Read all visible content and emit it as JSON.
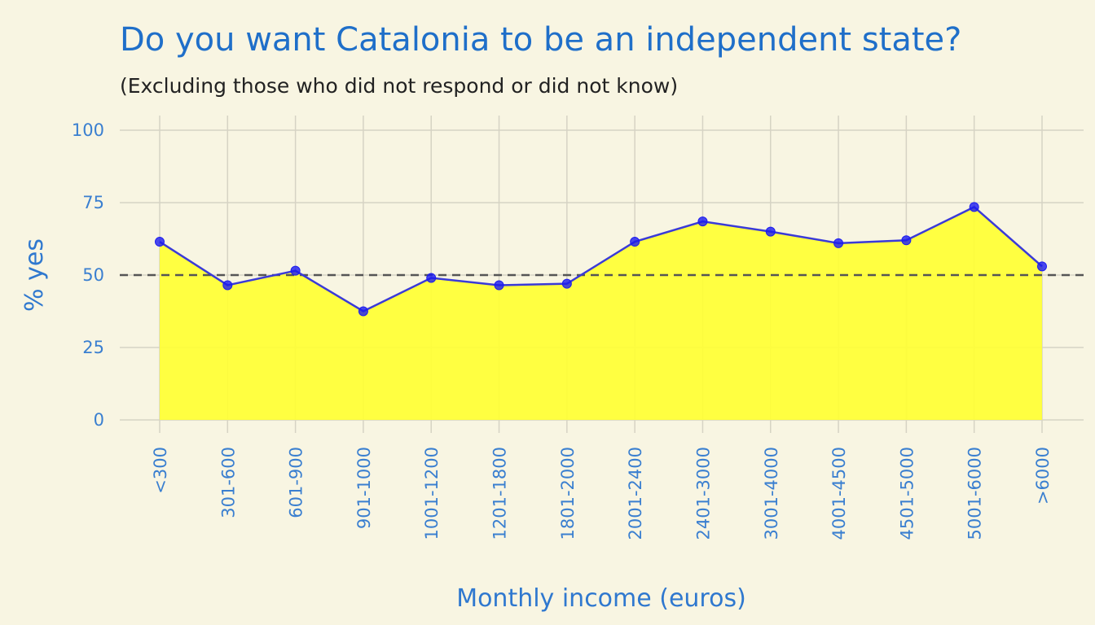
{
  "chart_data": {
    "type": "area",
    "title": "Do you want Catalonia to be an independent state?",
    "subtitle": "(Excluding those who did not respond or did not know)",
    "xlabel": "Monthly income (euros)",
    "ylabel": "% yes",
    "categories": [
      "<300",
      "301-600",
      "601-900",
      "901-1000",
      "1001-1200",
      "1201-1800",
      "1801-2000",
      "2001-2400",
      "2401-3000",
      "3001-4000",
      "4001-4500",
      "4501-5000",
      "5001-6000",
      ">6000"
    ],
    "values": [
      61.5,
      46.5,
      51.5,
      37.5,
      49,
      46.5,
      47,
      61.5,
      68.5,
      65,
      61,
      62,
      73.5,
      53
    ],
    "ylim": [
      0,
      100
    ],
    "yticks": [
      0,
      25,
      50,
      75,
      100
    ],
    "reference_line": 50,
    "grid": true,
    "colors": {
      "fill": "#ffff33",
      "line": "#3a3ad8",
      "point": "#1c1cf0",
      "reference": "#555555"
    }
  }
}
